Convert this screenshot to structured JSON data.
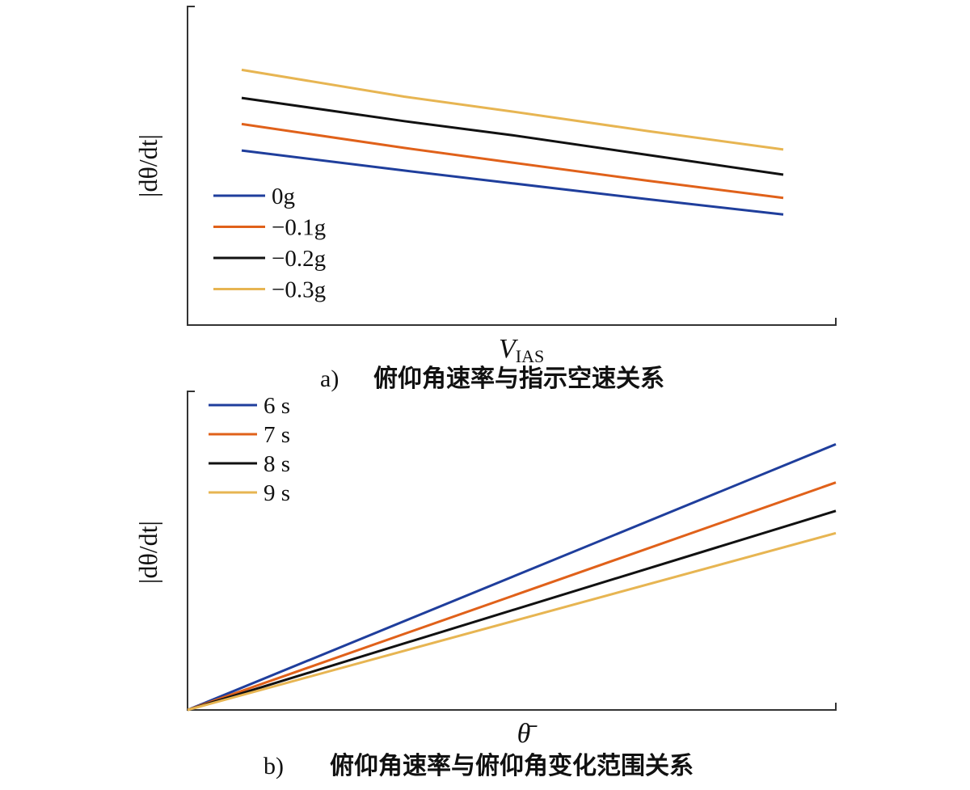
{
  "chart_data": [
    {
      "type": "line",
      "xlabel": "V",
      "xlabel_sub": "IAS",
      "ylabel": "|dθ/dt|",
      "caption_letter": "a)",
      "caption": "俯仰角速率与指示空速关系",
      "legend_position": "left",
      "x": [
        0.0,
        0.3,
        0.5,
        0.75,
        1.0
      ],
      "ylim": [
        0,
        1
      ],
      "series": [
        {
          "name": "0g",
          "color": "#1f3e9c",
          "values": [
            0.548,
            0.485,
            0.445,
            0.395,
            0.347
          ]
        },
        {
          "name": "−0.1g",
          "color": "#e0611a",
          "values": [
            0.631,
            0.556,
            0.51,
            0.453,
            0.399
          ]
        },
        {
          "name": "−0.2g",
          "color": "#111111",
          "values": [
            0.713,
            0.64,
            0.596,
            0.534,
            0.472
          ]
        },
        {
          "name": "−0.3g",
          "color": "#e7b552",
          "values": [
            0.801,
            0.717,
            0.67,
            0.609,
            0.551
          ]
        }
      ]
    },
    {
      "type": "line",
      "xlabel": "θ̄",
      "ylabel": "|dθ/dt|",
      "caption_letter": "b)",
      "caption": "俯仰角速率与俯仰角变化范围关系",
      "legend_position": "top-left",
      "x": [
        0.0,
        1.0
      ],
      "ylim": [
        0,
        1
      ],
      "series": [
        {
          "name": "6 s",
          "color": "#1f3e9c",
          "values": [
            0.0,
            0.834
          ]
        },
        {
          "name": "7 s",
          "color": "#e0611a",
          "values": [
            0.0,
            0.714
          ]
        },
        {
          "name": "8 s",
          "color": "#111111",
          "values": [
            0.0,
            0.625
          ]
        },
        {
          "name": "9 s",
          "color": "#e7b552",
          "values": [
            0.0,
            0.555
          ]
        }
      ]
    }
  ]
}
